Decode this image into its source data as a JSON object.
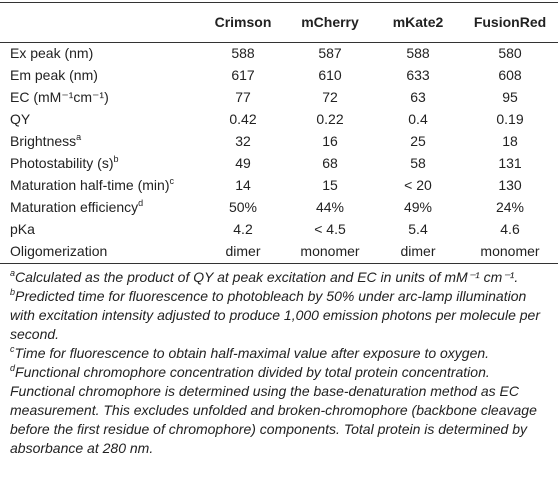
{
  "table": {
    "columns": [
      "Crimson",
      "mCherry",
      "mKate2",
      "FusionRed"
    ],
    "rows": [
      {
        "label": "Ex peak (nm)",
        "values": [
          "588",
          "587",
          "588",
          "580"
        ]
      },
      {
        "label": "Em peak (nm)",
        "values": [
          "617",
          "610",
          "633",
          "608"
        ]
      },
      {
        "label": "EC (mM⁻¹cm⁻¹)",
        "values": [
          "77",
          "72",
          "63",
          "95"
        ]
      },
      {
        "label": "QY",
        "values": [
          "0.42",
          "0.22",
          "0.4",
          "0.19"
        ]
      },
      {
        "label": "Brightness",
        "note": "a",
        "values": [
          "32",
          "16",
          "25",
          "18"
        ]
      },
      {
        "label": "Photostability (s)",
        "note": "b",
        "values": [
          "49",
          "68",
          "58",
          "131"
        ]
      },
      {
        "label": "Maturation half-time (min)",
        "note": "c",
        "values": [
          "14",
          "15",
          "< 20",
          "130"
        ]
      },
      {
        "label": "Maturation efficiency",
        "note": "d",
        "values": [
          "50%",
          "44%",
          "49%",
          "24%"
        ]
      },
      {
        "label": "pKa",
        "values": [
          "4.2",
          "< 4.5",
          "5.4",
          "4.6"
        ]
      },
      {
        "label": "Oligomerization",
        "values": [
          "dimer",
          "monomer",
          "dimer",
          "monomer"
        ]
      }
    ]
  },
  "footnotes": [
    {
      "marker": "a",
      "text": "Calculated as the product of QY at peak excitation and EC in units of mM⁻¹ cm⁻¹."
    },
    {
      "marker": "b",
      "text": "Predicted time for fluorescence to photobleach by 50% under arc-lamp illumination with excitation intensity adjusted to produce 1,000 emission photons per molecule per second."
    },
    {
      "marker": "c",
      "text": "Time for fluorescence to obtain half-maximal value after exposure to oxygen."
    },
    {
      "marker": "d",
      "text": "Functional chromophore concentration divided by total protein concentration. Functional chromophore is determined using the base-denaturation method as EC measurement. This excludes unfolded and broken-chromophore (backbone cleavage before the first residue of chromophore) components. Total protein is determined by absorbance at 280 nm."
    }
  ]
}
